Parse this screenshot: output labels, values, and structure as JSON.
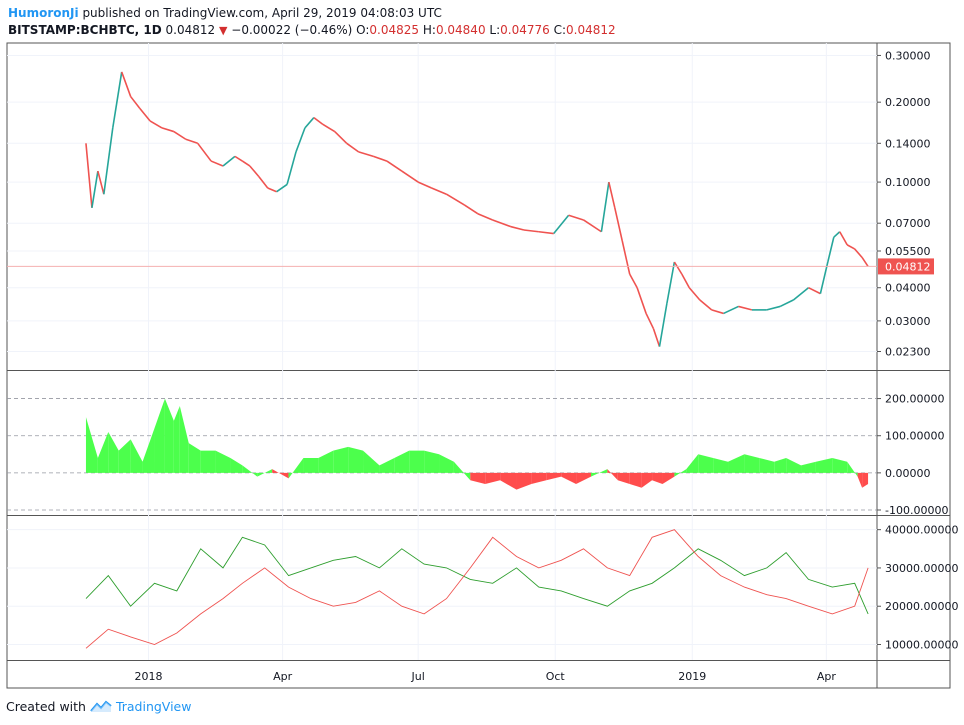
{
  "header": {
    "author": "HumoronJi",
    "published_text": " published on TradingView.com, April 29, 2019 04:08:03 UTC",
    "symbol": "BITSTAMP:BCHBTC, 1D",
    "last": "0.04812",
    "change": "−0.00022 (−0.46%)",
    "o_label": "O:",
    "o_value": "0.04825",
    "h_label": "H:",
    "h_value": "0.04840",
    "l_label": "L:",
    "l_value": "0.04776",
    "c_label": "C:",
    "c_value": "0.04812"
  },
  "footer": {
    "created_with": "Created with",
    "brand": "TradingView"
  },
  "colors": {
    "up": "#26a69a",
    "down": "#ef5350",
    "hist_pos": "#4cff4c",
    "hist_neg": "#ff4c4c",
    "price_line": "#f4b0b0",
    "green_line": "#2e9e2e",
    "red_line": "#ef5350"
  },
  "chart_data": [
    {
      "type": "line",
      "name": "price",
      "yscale": "log",
      "x": [
        "2017-11-20",
        "2017-11-24",
        "2017-11-28",
        "2017-12-02",
        "2017-12-08",
        "2017-12-14",
        "2017-12-20",
        "2017-12-26",
        "2018-01-02",
        "2018-01-10",
        "2018-01-18",
        "2018-01-26",
        "2018-02-03",
        "2018-02-12",
        "2018-02-20",
        "2018-02-28",
        "2018-03-05",
        "2018-03-10",
        "2018-03-16",
        "2018-03-22",
        "2018-03-28",
        "2018-04-04",
        "2018-04-10",
        "2018-04-16",
        "2018-04-22",
        "2018-04-28",
        "2018-05-06",
        "2018-05-14",
        "2018-05-22",
        "2018-06-01",
        "2018-06-10",
        "2018-06-20",
        "2018-07-01",
        "2018-07-10",
        "2018-07-20",
        "2018-08-01",
        "2018-08-10",
        "2018-08-20",
        "2018-09-01",
        "2018-09-10",
        "2018-09-20",
        "2018-09-30",
        "2018-10-10",
        "2018-10-20",
        "2018-11-01",
        "2018-11-06",
        "2018-11-10",
        "2018-11-15",
        "2018-11-20",
        "2018-11-25",
        "2018-12-01",
        "2018-12-06",
        "2018-12-10",
        "2018-12-15",
        "2018-12-20",
        "2018-12-25",
        "2018-12-30",
        "2019-01-06",
        "2019-01-14",
        "2019-01-22",
        "2019-02-01",
        "2019-02-10",
        "2019-02-20",
        "2019-03-01",
        "2019-03-10",
        "2019-03-20",
        "2019-03-28",
        "2019-04-02",
        "2019-04-06",
        "2019-04-10",
        "2019-04-15",
        "2019-04-20",
        "2019-04-25",
        "2019-04-29"
      ],
      "values": [
        0.14,
        0.08,
        0.11,
        0.09,
        0.16,
        0.26,
        0.21,
        0.19,
        0.17,
        0.16,
        0.155,
        0.145,
        0.14,
        0.12,
        0.115,
        0.125,
        0.12,
        0.115,
        0.105,
        0.095,
        0.092,
        0.098,
        0.13,
        0.16,
        0.175,
        0.165,
        0.155,
        0.14,
        0.13,
        0.125,
        0.12,
        0.11,
        0.1,
        0.095,
        0.09,
        0.082,
        0.076,
        0.072,
        0.068,
        0.066,
        0.065,
        0.064,
        0.075,
        0.072,
        0.065,
        0.1,
        0.08,
        0.06,
        0.045,
        0.04,
        0.032,
        0.028,
        0.024,
        0.035,
        0.05,
        0.045,
        0.04,
        0.036,
        0.033,
        0.032,
        0.034,
        0.033,
        0.033,
        0.034,
        0.036,
        0.04,
        0.038,
        0.05,
        0.062,
        0.065,
        0.058,
        0.056,
        0.052,
        0.04812
      ],
      "last_value_label": "0.04812",
      "ytick_labels": [
        "0.30000",
        "0.20000",
        "0.14000",
        "0.10000",
        "0.07000",
        "0.05500",
        "0.04000",
        "0.03000",
        "0.02300"
      ],
      "yticks": [
        0.3,
        0.2,
        0.14,
        0.1,
        0.07,
        0.055,
        0.04,
        0.03,
        0.023
      ]
    },
    {
      "type": "area",
      "name": "oscillator",
      "x": [
        "2017-11-20",
        "2017-11-28",
        "2017-12-05",
        "2017-12-12",
        "2017-12-20",
        "2017-12-28",
        "2018-01-05",
        "2018-01-12",
        "2018-01-18",
        "2018-01-22",
        "2018-01-28",
        "2018-02-05",
        "2018-02-15",
        "2018-02-25",
        "2018-03-05",
        "2018-03-15",
        "2018-03-25",
        "2018-04-05",
        "2018-04-15",
        "2018-04-25",
        "2018-05-05",
        "2018-05-15",
        "2018-05-25",
        "2018-06-05",
        "2018-06-15",
        "2018-06-25",
        "2018-07-05",
        "2018-07-15",
        "2018-07-25",
        "2018-08-05",
        "2018-08-15",
        "2018-08-25",
        "2018-09-05",
        "2018-09-15",
        "2018-09-25",
        "2018-10-05",
        "2018-10-15",
        "2018-10-25",
        "2018-11-05",
        "2018-11-12",
        "2018-11-20",
        "2018-11-28",
        "2018-12-05",
        "2018-12-12",
        "2018-12-20",
        "2018-12-28",
        "2019-01-05",
        "2019-01-15",
        "2019-01-25",
        "2019-02-05",
        "2019-02-15",
        "2019-02-25",
        "2019-03-05",
        "2019-03-15",
        "2019-03-25",
        "2019-04-05",
        "2019-04-15",
        "2019-04-22",
        "2019-04-25",
        "2019-04-29"
      ],
      "values": [
        150,
        40,
        110,
        60,
        90,
        30,
        120,
        200,
        140,
        180,
        80,
        60,
        60,
        40,
        20,
        -10,
        10,
        -15,
        40,
        40,
        60,
        70,
        60,
        20,
        40,
        60,
        60,
        50,
        30,
        -20,
        -30,
        -20,
        -45,
        -30,
        -20,
        -10,
        -30,
        -10,
        10,
        -20,
        -30,
        -40,
        -20,
        -30,
        -10,
        10,
        50,
        40,
        30,
        50,
        40,
        30,
        40,
        20,
        30,
        40,
        30,
        -10,
        -40,
        -30
      ],
      "ylim": [
        -100,
        250
      ],
      "ytick_labels": [
        "200.00000",
        "100.00000",
        "0.00000",
        "-100.00000"
      ],
      "yticks": [
        200,
        100,
        0,
        -100
      ]
    },
    {
      "type": "line",
      "name": "two-line indicator",
      "x": [
        "2017-11-20",
        "2017-12-05",
        "2017-12-20",
        "2018-01-05",
        "2018-01-20",
        "2018-02-05",
        "2018-02-20",
        "2018-03-05",
        "2018-03-20",
        "2018-04-05",
        "2018-04-20",
        "2018-05-05",
        "2018-05-20",
        "2018-06-05",
        "2018-06-20",
        "2018-07-05",
        "2018-07-20",
        "2018-08-05",
        "2018-08-20",
        "2018-09-05",
        "2018-09-20",
        "2018-10-05",
        "2018-10-20",
        "2018-11-05",
        "2018-11-20",
        "2018-12-05",
        "2018-12-20",
        "2019-01-05",
        "2019-01-20",
        "2019-02-05",
        "2019-02-20",
        "2019-03-05",
        "2019-03-20",
        "2019-04-05",
        "2019-04-20",
        "2019-04-29"
      ],
      "series": [
        {
          "values": [
            22000,
            28000,
            20000,
            26000,
            24000,
            35000,
            30000,
            38000,
            36000,
            28000,
            30000,
            32000,
            33000,
            30000,
            35000,
            31000,
            30000,
            27000,
            26000,
            30000,
            25000,
            24000,
            22000,
            20000,
            24000,
            26000,
            30000,
            35000,
            32000,
            28000,
            30000,
            34000,
            27000,
            25000,
            26000,
            18000
          ]
        },
        {
          "values": [
            9000,
            14000,
            12000,
            10000,
            13000,
            18000,
            22000,
            26000,
            30000,
            25000,
            22000,
            20000,
            21000,
            24000,
            20000,
            18000,
            22000,
            30000,
            38000,
            33000,
            30000,
            32000,
            35000,
            30000,
            28000,
            38000,
            40000,
            33000,
            28000,
            25000,
            23000,
            22000,
            20000,
            18000,
            20000,
            30000
          ]
        }
      ],
      "ylim": [
        7000,
        42000
      ],
      "ytick_labels": [
        "40000.00000",
        "30000.00000",
        "20000.00000",
        "10000.00000"
      ],
      "yticks": [
        40000,
        30000,
        20000,
        10000
      ]
    }
  ],
  "xaxis": {
    "tick_labels": [
      "2018",
      "Apr",
      "Jul",
      "Oct",
      "2019",
      "Apr"
    ],
    "tick_dates": [
      "2018-01-01",
      "2018-04-01",
      "2018-07-01",
      "2018-10-01",
      "2019-01-01",
      "2019-04-01"
    ]
  }
}
